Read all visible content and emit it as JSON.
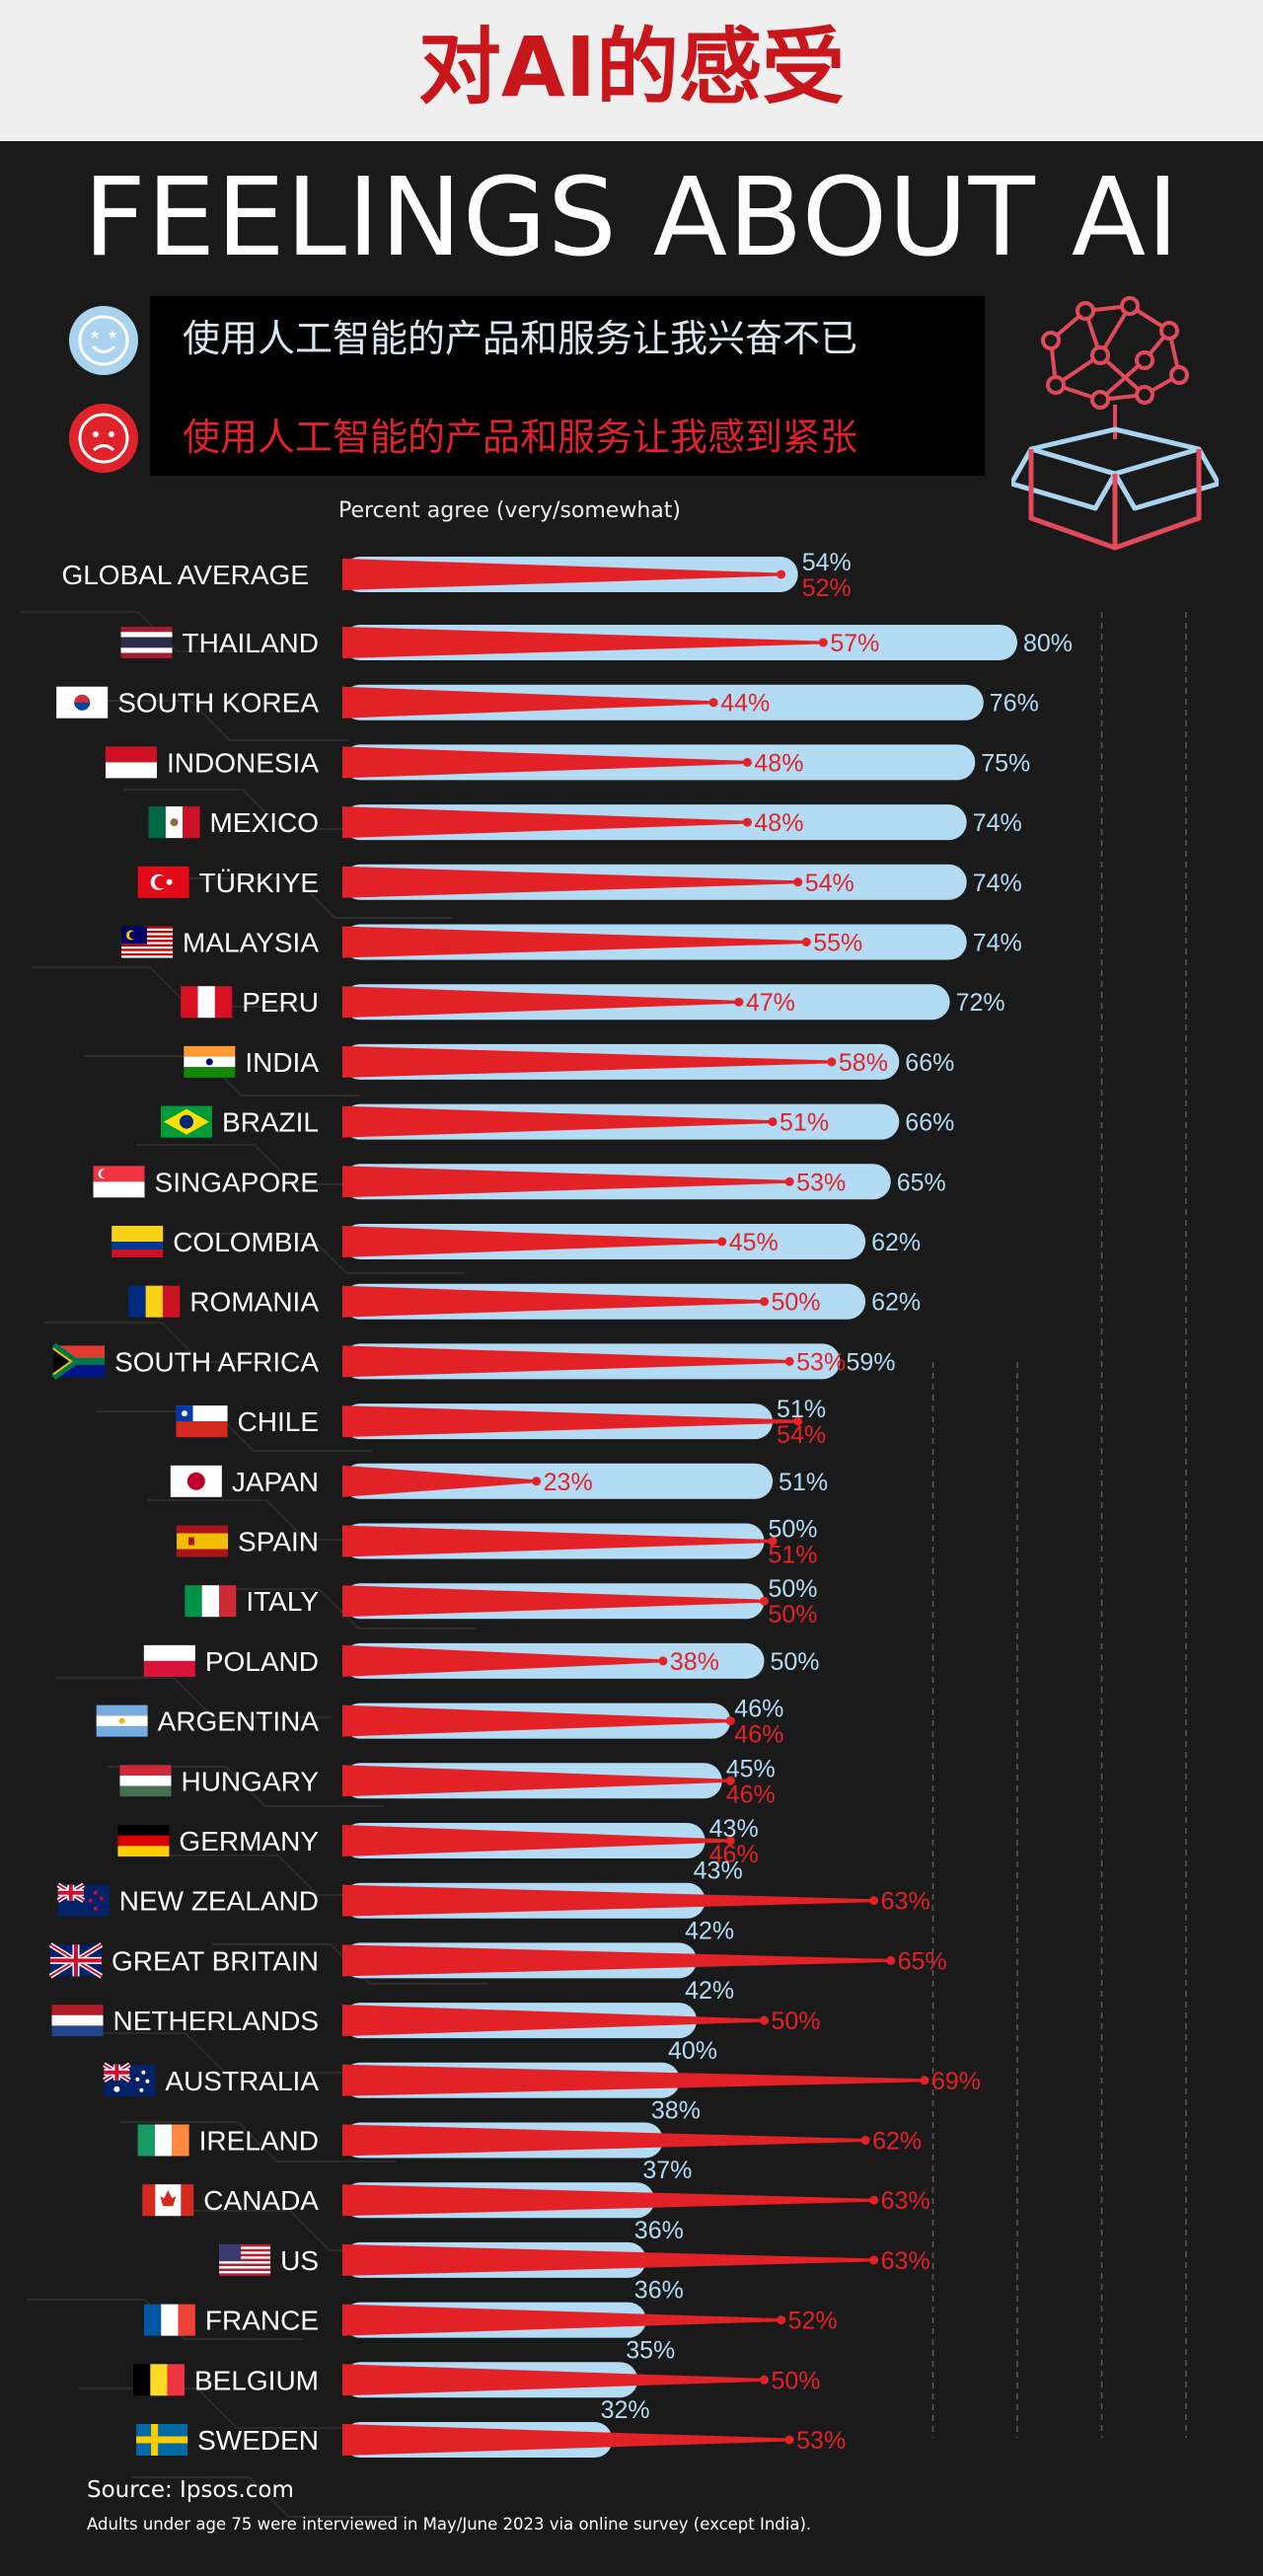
{
  "header": {
    "chinese_title": "对AI的感受"
  },
  "title": "FEELINGS ABOUT AI",
  "legend": {
    "excited": {
      "label": "使用人工智能的产品和服务让我兴奋不已",
      "icon": "star-eyes-face-icon",
      "color": "#a9d3ef"
    },
    "nervous": {
      "label": "使用人工智能的产品和服务让我感到紧张",
      "icon": "worried-face-icon",
      "color": "#e0232a"
    }
  },
  "decoration_icon": "brain-network-box-icon",
  "note": "Percent agree (very/somewhat)",
  "colors": {
    "excited": "#b3dcf4",
    "nervous": "#e32228",
    "background": "#1a1a1a",
    "header_red": "#c8161d"
  },
  "chart_data": {
    "type": "bar",
    "orientation": "horizontal",
    "value_suffix": "%",
    "xlim": [
      0,
      100
    ],
    "categories": [
      "GLOBAL AVERAGE",
      "THAILAND",
      "SOUTH KOREA",
      "INDONESIA",
      "MEXICO",
      "TÜRKIYE",
      "MALAYSIA",
      "PERU",
      "INDIA",
      "BRAZIL",
      "SINGAPORE",
      "COLOMBIA",
      "ROMANIA",
      "SOUTH AFRICA",
      "CHILE",
      "JAPAN",
      "SPAIN",
      "ITALY",
      "POLAND",
      "ARGENTINA",
      "HUNGARY",
      "GERMANY",
      "NEW ZEALAND",
      "GREAT BRITAIN",
      "NETHERLANDS",
      "AUSTRALIA",
      "IRELAND",
      "CANADA",
      "US",
      "FRANCE",
      "BELGIUM",
      "SWEDEN"
    ],
    "flags": [
      "",
      "thailand-flag-icon",
      "south-korea-flag-icon",
      "indonesia-flag-icon",
      "mexico-flag-icon",
      "turkiye-flag-icon",
      "malaysia-flag-icon",
      "peru-flag-icon",
      "india-flag-icon",
      "brazil-flag-icon",
      "singapore-flag-icon",
      "colombia-flag-icon",
      "romania-flag-icon",
      "south-africa-flag-icon",
      "chile-flag-icon",
      "japan-flag-icon",
      "spain-flag-icon",
      "italy-flag-icon",
      "poland-flag-icon",
      "argentina-flag-icon",
      "hungary-flag-icon",
      "germany-flag-icon",
      "new-zealand-flag-icon",
      "great-britain-flag-icon",
      "netherlands-flag-icon",
      "australia-flag-icon",
      "ireland-flag-icon",
      "canada-flag-icon",
      "us-flag-icon",
      "france-flag-icon",
      "belgium-flag-icon",
      "sweden-flag-icon"
    ],
    "series": [
      {
        "key": "excited",
        "values": [
          54,
          80,
          76,
          75,
          74,
          74,
          74,
          72,
          66,
          66,
          65,
          62,
          62,
          59,
          51,
          51,
          50,
          50,
          50,
          46,
          45,
          43,
          43,
          42,
          42,
          40,
          38,
          37,
          36,
          36,
          35,
          32
        ]
      },
      {
        "key": "nervous",
        "values": [
          52,
          57,
          44,
          48,
          48,
          54,
          55,
          47,
          58,
          51,
          53,
          45,
          50,
          53,
          54,
          23,
          51,
          50,
          38,
          46,
          46,
          46,
          63,
          65,
          50,
          69,
          62,
          63,
          63,
          52,
          50,
          53
        ]
      }
    ]
  },
  "footer": {
    "source": "Source: Ipsos.com",
    "footnote": "Adults under age 75 were interviewed in May/June 2023 via online survey (except India)."
  }
}
